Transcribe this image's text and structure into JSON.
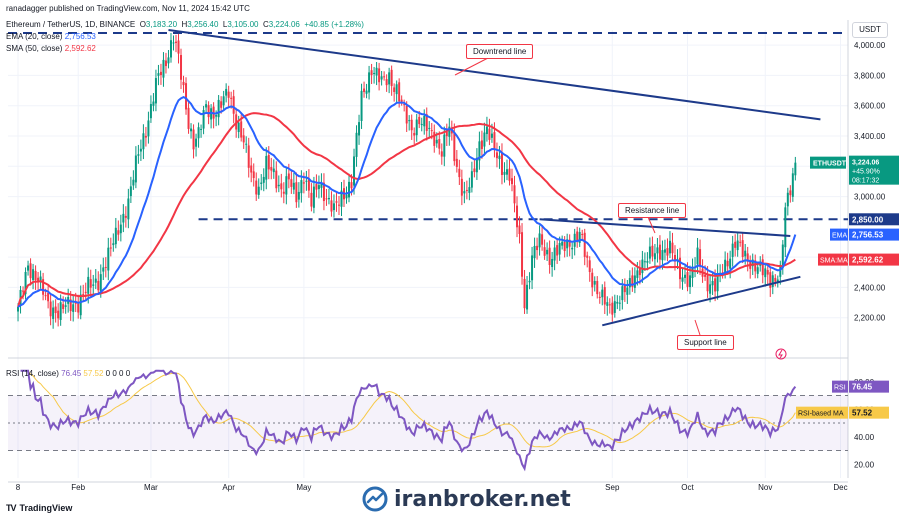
{
  "header": {
    "publisher": "ranadagger published on TradingView.com, Nov 11, 2024 15:42 UTC",
    "symbol": "Ethereum / TetherUS, 1D, BINANCE",
    "o_label": "O",
    "o": "3,183.20",
    "h_label": "H",
    "h": "3,256.40",
    "l_label": "L",
    "l": "3,105.00",
    "c_label": "C",
    "c": "3,224.06",
    "change": "+40.85 (+1.28%)",
    "ema_label": "EMA (20, close)",
    "ema_value": "2,756.53",
    "sma_label": "SMA (50, close)",
    "sma_value": "2,592.62",
    "rsi_label": "RSI (14, close)",
    "rsi_value": "76.45",
    "rsi_ma_value": "57.52",
    "rsi_extra": "0 0 0 0"
  },
  "currency": "USDT",
  "footer": {
    "tradingview": "TradingView",
    "watermark": "iranbroker.net"
  },
  "chart_data": {
    "type": "candlestick",
    "symbol": "ETHUSDT",
    "timeframe": "1D",
    "price_axis": {
      "ylim": [
        2000,
        4100
      ],
      "ticks": [
        {
          "v": 2200,
          "t": "2,200.00"
        },
        {
          "v": 2400,
          "t": "2,400.00"
        },
        {
          "v": 2600,
          "t": "2,600.00"
        },
        {
          "v": 3000,
          "t": "3,000.00"
        },
        {
          "v": 3200,
          "t": "3,200.00"
        },
        {
          "v": 3400,
          "t": "3,400.00"
        },
        {
          "v": 3600,
          "t": "3,600.00"
        },
        {
          "v": 3800,
          "t": "3,800.00"
        },
        {
          "v": 4000,
          "t": "4,000.00"
        }
      ]
    },
    "time_axis": {
      "days_range": [
        -4,
        331
      ],
      "ticks": [
        {
          "d": 0,
          "t": "8"
        },
        {
          "d": 24,
          "t": "Feb"
        },
        {
          "d": 53,
          "t": "Mar"
        },
        {
          "d": 84,
          "t": "Apr"
        },
        {
          "d": 114,
          "t": "May"
        },
        {
          "d": 237,
          "t": "Sep"
        },
        {
          "d": 267,
          "t": "Oct"
        },
        {
          "d": 298,
          "t": "Nov"
        },
        {
          "d": 328,
          "t": "Dec"
        }
      ]
    },
    "price_keypoints": [
      [
        0,
        2250
      ],
      [
        4,
        2550
      ],
      [
        8,
        2450
      ],
      [
        12,
        2280
      ],
      [
        16,
        2240
      ],
      [
        20,
        2280
      ],
      [
        24,
        2300
      ],
      [
        28,
        2400
      ],
      [
        32,
        2450
      ],
      [
        36,
        2600
      ],
      [
        40,
        2800
      ],
      [
        44,
        2950
      ],
      [
        48,
        3300
      ],
      [
        52,
        3500
      ],
      [
        56,
        3800
      ],
      [
        60,
        3950
      ],
      [
        62,
        4050
      ],
      [
        64,
        3900
      ],
      [
        66,
        3700
      ],
      [
        68,
        3500
      ],
      [
        70,
        3350
      ],
      [
        72,
        3400
      ],
      [
        75,
        3600
      ],
      [
        78,
        3550
      ],
      [
        81,
        3600
      ],
      [
        84,
        3700
      ],
      [
        87,
        3500
      ],
      [
        90,
        3350
      ],
      [
        93,
        3150
      ],
      [
        96,
        3050
      ],
      [
        99,
        3200
      ],
      [
        102,
        3150
      ],
      [
        105,
        3050
      ],
      [
        108,
        3100
      ],
      [
        111,
        3000
      ],
      [
        114,
        3150
      ],
      [
        117,
        2950
      ],
      [
        120,
        3100
      ],
      [
        123,
        3000
      ],
      [
        126,
        2900
      ],
      [
        129,
        3000
      ],
      [
        133,
        3100
      ],
      [
        137,
        3650
      ],
      [
        141,
        3850
      ],
      [
        145,
        3750
      ],
      [
        148,
        3800
      ],
      [
        151,
        3700
      ],
      [
        154,
        3550
      ],
      [
        157,
        3450
      ],
      [
        160,
        3500
      ],
      [
        163,
        3450
      ],
      [
        166,
        3400
      ],
      [
        169,
        3300
      ],
      [
        172,
        3450
      ],
      [
        175,
        3200
      ],
      [
        178,
        3000
      ],
      [
        181,
        3100
      ],
      [
        184,
        3350
      ],
      [
        187,
        3450
      ],
      [
        190,
        3300
      ],
      [
        193,
        3200
      ],
      [
        196,
        3150
      ],
      [
        200,
        2700
      ],
      [
        202,
        2300
      ],
      [
        205,
        2600
      ],
      [
        208,
        2700
      ],
      [
        212,
        2600
      ],
      [
        216,
        2650
      ],
      [
        220,
        2700
      ],
      [
        224,
        2750
      ],
      [
        228,
        2500
      ],
      [
        232,
        2350
      ],
      [
        236,
        2250
      ],
      [
        240,
        2350
      ],
      [
        244,
        2400
      ],
      [
        248,
        2550
      ],
      [
        252,
        2600
      ],
      [
        256,
        2650
      ],
      [
        260,
        2650
      ],
      [
        264,
        2500
      ],
      [
        268,
        2450
      ],
      [
        271,
        2600
      ],
      [
        274,
        2450
      ],
      [
        278,
        2400
      ],
      [
        282,
        2550
      ],
      [
        286,
        2700
      ],
      [
        290,
        2600
      ],
      [
        294,
        2550
      ],
      [
        297,
        2500
      ],
      [
        300,
        2450
      ],
      [
        304,
        2500
      ],
      [
        306,
        2900
      ],
      [
        308,
        3050
      ],
      [
        310,
        3224
      ]
    ],
    "horizontal_levels": [
      {
        "value": 4080,
        "style": "dashed"
      },
      {
        "value": 2850,
        "style": "dashed",
        "label": "2,850.00"
      }
    ],
    "trendlines": {
      "downtrend": {
        "points": [
          [
            60,
            4100
          ],
          [
            320,
            3510
          ]
        ],
        "label": "Downtrend line"
      },
      "resistance": {
        "points": [
          [
            208,
            2850
          ],
          [
            308,
            2740
          ]
        ],
        "label": "Resistance line"
      },
      "support": {
        "points": [
          [
            233,
            2150
          ],
          [
            312,
            2470
          ]
        ],
        "label": "Support line"
      }
    },
    "last_price": {
      "label": "ETHUSDT",
      "value": "3,224.06",
      "change": "+45.90%",
      "countdown": "08:17:32"
    },
    "tags": {
      "ema": "EMA",
      "sma": "SMA:MA",
      "rsi": "RSI",
      "rsi_ma": "RSI-based MA"
    },
    "rsi": {
      "ylim": [
        10,
        90
      ],
      "ticks": [
        {
          "v": 80,
          "t": "80.00"
        },
        {
          "v": 60,
          "t": "60.00"
        },
        {
          "v": 40,
          "t": "40.00"
        },
        {
          "v": 20,
          "t": "20.00"
        }
      ],
      "upper_band": 70,
      "lower_band": 30,
      "mid": 50,
      "last": 76.45,
      "ma_last": 57.52
    }
  },
  "colors": {
    "up": "#089981",
    "down": "#f23645",
    "ema": "#2962ff",
    "sma": "#f23645",
    "trend": "#1d3a8a",
    "rsi": "#7e57c2",
    "rsi_ma": "#f7c948"
  }
}
